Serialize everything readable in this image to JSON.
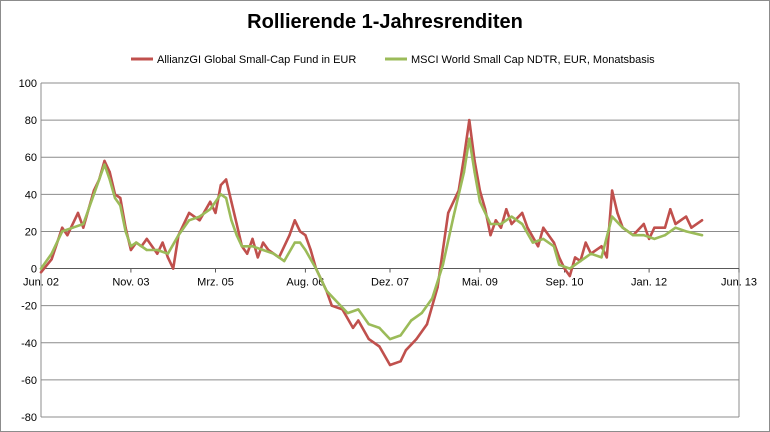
{
  "chart_data": {
    "type": "line",
    "title": "Rollierende 1-Jahresrenditen",
    "xlabel": "",
    "ylabel": "",
    "ylim": [
      -80,
      100
    ],
    "yticks": [
      100,
      80,
      60,
      40,
      20,
      0,
      -20,
      -40,
      -60,
      -80
    ],
    "xlim": [
      "2002-06",
      "2013-06"
    ],
    "xticks": [
      {
        "label": "Jun. 02",
        "date": "2002-06"
      },
      {
        "label": "Nov. 03",
        "date": "2003-11"
      },
      {
        "label": "Mrz. 05",
        "date": "2005-03"
      },
      {
        "label": "Aug. 06",
        "date": "2006-08"
      },
      {
        "label": "Dez. 07",
        "date": "2007-12"
      },
      {
        "label": "Mai. 09",
        "date": "2009-05"
      },
      {
        "label": "Sep. 10",
        "date": "2010-09"
      },
      {
        "label": "Jan. 12",
        "date": "2012-01"
      },
      {
        "label": "Jun. 13",
        "date": "2013-06"
      }
    ],
    "grid": "horizontal",
    "legend_position": "top",
    "series": [
      {
        "name": "AllianzGI Global Small-Cap  Fund in EUR",
        "color": "#c0504d",
        "points": [
          [
            "2002-06",
            -2
          ],
          [
            "2002-08",
            5
          ],
          [
            "2002-10",
            22
          ],
          [
            "2002-11",
            18
          ],
          [
            "2003-01",
            30
          ],
          [
            "2003-02",
            22
          ],
          [
            "2003-04",
            42
          ],
          [
            "2003-05",
            48
          ],
          [
            "2003-06",
            58
          ],
          [
            "2003-07",
            52
          ],
          [
            "2003-08",
            40
          ],
          [
            "2003-09",
            38
          ],
          [
            "2003-10",
            22
          ],
          [
            "2003-11",
            10
          ],
          [
            "2003-12",
            14
          ],
          [
            "2004-01",
            12
          ],
          [
            "2004-02",
            16
          ],
          [
            "2004-04",
            8
          ],
          [
            "2004-05",
            14
          ],
          [
            "2004-06",
            6
          ],
          [
            "2004-07",
            0
          ],
          [
            "2004-08",
            18
          ],
          [
            "2004-10",
            30
          ],
          [
            "2004-12",
            26
          ],
          [
            "2005-02",
            36
          ],
          [
            "2005-03",
            30
          ],
          [
            "2005-04",
            45
          ],
          [
            "2005-05",
            48
          ],
          [
            "2005-06",
            36
          ],
          [
            "2005-07",
            24
          ],
          [
            "2005-08",
            12
          ],
          [
            "2005-09",
            8
          ],
          [
            "2005-10",
            16
          ],
          [
            "2005-11",
            6
          ],
          [
            "2005-12",
            14
          ],
          [
            "2006-01",
            10
          ],
          [
            "2006-03",
            6
          ],
          [
            "2006-05",
            18
          ],
          [
            "2006-06",
            26
          ],
          [
            "2006-07",
            20
          ],
          [
            "2006-08",
            18
          ],
          [
            "2006-09",
            10
          ],
          [
            "2006-10",
            0
          ],
          [
            "2006-12",
            -12
          ],
          [
            "2007-01",
            -20
          ],
          [
            "2007-03",
            -22
          ],
          [
            "2007-05",
            -32
          ],
          [
            "2007-06",
            -28
          ],
          [
            "2007-08",
            -38
          ],
          [
            "2007-10",
            -42
          ],
          [
            "2007-12",
            -52
          ],
          [
            "2008-02",
            -50
          ],
          [
            "2008-03",
            -44
          ],
          [
            "2008-05",
            -38
          ],
          [
            "2008-07",
            -30
          ],
          [
            "2008-09",
            -10
          ],
          [
            "2008-10",
            10
          ],
          [
            "2008-11",
            30
          ],
          [
            "2009-01",
            42
          ],
          [
            "2009-02",
            60
          ],
          [
            "2009-03",
            80
          ],
          [
            "2009-04",
            58
          ],
          [
            "2009-05",
            42
          ],
          [
            "2009-06",
            32
          ],
          [
            "2009-07",
            18
          ],
          [
            "2009-08",
            26
          ],
          [
            "2009-09",
            22
          ],
          [
            "2009-10",
            32
          ],
          [
            "2009-11",
            24
          ],
          [
            "2010-01",
            30
          ],
          [
            "2010-02",
            22
          ],
          [
            "2010-04",
            12
          ],
          [
            "2010-05",
            22
          ],
          [
            "2010-07",
            14
          ],
          [
            "2010-08",
            6
          ],
          [
            "2010-09",
            0
          ],
          [
            "2010-10",
            -4
          ],
          [
            "2010-11",
            6
          ],
          [
            "2010-12",
            4
          ],
          [
            "2011-01",
            14
          ],
          [
            "2011-02",
            8
          ],
          [
            "2011-04",
            12
          ],
          [
            "2011-05",
            6
          ],
          [
            "2011-06",
            42
          ],
          [
            "2011-07",
            30
          ],
          [
            "2011-08",
            22
          ],
          [
            "2011-10",
            18
          ],
          [
            "2011-12",
            24
          ],
          [
            "2012-01",
            16
          ],
          [
            "2012-02",
            22
          ],
          [
            "2012-04",
            22
          ],
          [
            "2012-05",
            32
          ],
          [
            "2012-06",
            24
          ],
          [
            "2012-08",
            28
          ],
          [
            "2012-09",
            22
          ],
          [
            "2012-11",
            26
          ]
        ]
      },
      {
        "name": "MSCI World Small Cap NDTR,  EUR,  Monatsbasis",
        "color": "#9bbb59",
        "points": [
          [
            "2002-06",
            0
          ],
          [
            "2002-08",
            8
          ],
          [
            "2002-10",
            20
          ],
          [
            "2002-12",
            22
          ],
          [
            "2003-02",
            24
          ],
          [
            "2003-04",
            40
          ],
          [
            "2003-06",
            56
          ],
          [
            "2003-07",
            48
          ],
          [
            "2003-08",
            38
          ],
          [
            "2003-09",
            34
          ],
          [
            "2003-10",
            20
          ],
          [
            "2003-11",
            12
          ],
          [
            "2003-12",
            14
          ],
          [
            "2004-02",
            10
          ],
          [
            "2004-04",
            10
          ],
          [
            "2004-06",
            8
          ],
          [
            "2004-08",
            18
          ],
          [
            "2004-10",
            26
          ],
          [
            "2004-12",
            28
          ],
          [
            "2005-02",
            32
          ],
          [
            "2005-04",
            40
          ],
          [
            "2005-05",
            38
          ],
          [
            "2005-06",
            26
          ],
          [
            "2005-07",
            18
          ],
          [
            "2005-08",
            12
          ],
          [
            "2005-10",
            12
          ],
          [
            "2005-12",
            10
          ],
          [
            "2006-02",
            8
          ],
          [
            "2006-04",
            4
          ],
          [
            "2006-06",
            14
          ],
          [
            "2006-07",
            14
          ],
          [
            "2006-08",
            10
          ],
          [
            "2006-10",
            0
          ],
          [
            "2006-12",
            -12
          ],
          [
            "2007-02",
            -18
          ],
          [
            "2007-04",
            -24
          ],
          [
            "2007-06",
            -22
          ],
          [
            "2007-08",
            -30
          ],
          [
            "2007-10",
            -32
          ],
          [
            "2007-12",
            -38
          ],
          [
            "2008-02",
            -36
          ],
          [
            "2008-04",
            -28
          ],
          [
            "2008-06",
            -24
          ],
          [
            "2008-08",
            -16
          ],
          [
            "2008-10",
            2
          ],
          [
            "2008-12",
            28
          ],
          [
            "2009-02",
            52
          ],
          [
            "2009-03",
            70
          ],
          [
            "2009-04",
            52
          ],
          [
            "2009-05",
            36
          ],
          [
            "2009-07",
            24
          ],
          [
            "2009-09",
            24
          ],
          [
            "2009-11",
            28
          ],
          [
            "2010-01",
            24
          ],
          [
            "2010-03",
            14
          ],
          [
            "2010-05",
            16
          ],
          [
            "2010-07",
            12
          ],
          [
            "2010-08",
            2
          ],
          [
            "2010-10",
            0
          ],
          [
            "2010-12",
            4
          ],
          [
            "2011-02",
            8
          ],
          [
            "2011-04",
            6
          ],
          [
            "2011-06",
            28
          ],
          [
            "2011-08",
            22
          ],
          [
            "2011-10",
            18
          ],
          [
            "2011-12",
            18
          ],
          [
            "2012-02",
            16
          ],
          [
            "2012-04",
            18
          ],
          [
            "2012-06",
            22
          ],
          [
            "2012-08",
            20
          ],
          [
            "2012-11",
            18
          ]
        ]
      }
    ]
  }
}
